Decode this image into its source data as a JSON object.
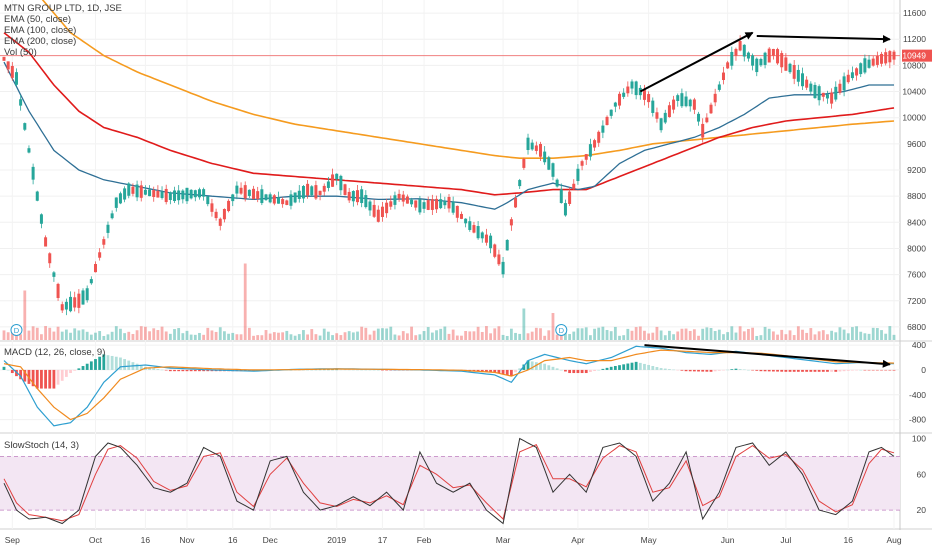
{
  "legend": {
    "title": "MTN GROUP LTD, 1D, JSE",
    "ema50": "EMA (50, close)",
    "ema100": "EMA (100, close)",
    "ema200": "EMA (200, close)",
    "vol": "Vol (50)"
  },
  "panes": {
    "macd_label": "MACD (12, 26, close, 9)",
    "stoch_label": "SlowStoch (14, 3)"
  },
  "price_tag": "10949",
  "colors": {
    "up": "#26a69a",
    "down": "#ef5350",
    "ema50": "#2e6f95",
    "ema100": "#e01b1b",
    "ema200": "#f59b1f",
    "macd": "#2e9fd0",
    "signal": "#f08a1e",
    "stoch_k": "#333333",
    "stoch_d": "#e04040",
    "stoch_band": "#f3e6f3",
    "price_line": "#f08080",
    "price_tag_bg": "#ef5350",
    "arrows": "#000000"
  },
  "chart_data": [
    {
      "type": "candlestick",
      "title": "MTN GROUP LTD, 1D, JSE",
      "y_ticks": [
        11600,
        11200,
        10800,
        10400,
        10000,
        9600,
        9200,
        8800,
        8400,
        8000,
        7600,
        7200,
        6800
      ],
      "ylim": [
        6600,
        11800
      ],
      "x_ticks": [
        "Sep",
        "Oct",
        "16",
        "Nov",
        "16",
        "Dec",
        "2019",
        "17",
        "Feb",
        "Mar",
        "Apr",
        "May",
        "Jun",
        "Jul",
        "16",
        "Aug"
      ],
      "last_price": 10949,
      "price_path": [
        [
          0,
          10900
        ],
        [
          3,
          10600
        ],
        [
          6,
          9500
        ],
        [
          10,
          8100
        ],
        [
          14,
          7100
        ],
        [
          18,
          7200
        ],
        [
          20,
          7300
        ],
        [
          24,
          8100
        ],
        [
          27,
          8700
        ],
        [
          30,
          8900
        ],
        [
          40,
          8800
        ],
        [
          48,
          8850
        ],
        [
          52,
          8400
        ],
        [
          56,
          8900
        ],
        [
          62,
          8800
        ],
        [
          68,
          8700
        ],
        [
          73,
          8900
        ],
        [
          76,
          8850
        ],
        [
          80,
          9100
        ],
        [
          83,
          8800
        ],
        [
          86,
          8800
        ],
        [
          90,
          8500
        ],
        [
          95,
          8800
        ],
        [
          100,
          8650
        ],
        [
          107,
          8700
        ],
        [
          112,
          8350
        ],
        [
          117,
          8100
        ],
        [
          120,
          7700
        ],
        [
          122,
          8400
        ],
        [
          126,
          9600
        ],
        [
          129,
          9500
        ],
        [
          132,
          9200
        ],
        [
          135,
          8600
        ],
        [
          139,
          9300
        ],
        [
          143,
          9700
        ],
        [
          147,
          10200
        ],
        [
          151,
          10500
        ],
        [
          155,
          10300
        ],
        [
          158,
          9900
        ],
        [
          162,
          10300
        ],
        [
          166,
          10200
        ],
        [
          168,
          9800
        ],
        [
          171,
          10300
        ],
        [
          174,
          10800
        ],
        [
          177,
          11100
        ],
        [
          181,
          10800
        ],
        [
          185,
          11000
        ],
        [
          190,
          10700
        ],
        [
          195,
          10400
        ],
        [
          199,
          10300
        ],
        [
          203,
          10600
        ],
        [
          207,
          10800
        ],
        [
          211,
          10900
        ],
        [
          214,
          10949
        ]
      ],
      "ema50": [
        [
          0,
          10850
        ],
        [
          6,
          10100
        ],
        [
          12,
          9500
        ],
        [
          18,
          9200
        ],
        [
          24,
          9050
        ],
        [
          32,
          8950
        ],
        [
          40,
          8850
        ],
        [
          50,
          8800
        ],
        [
          60,
          8750
        ],
        [
          70,
          8800
        ],
        [
          80,
          8800
        ],
        [
          90,
          8750
        ],
        [
          100,
          8760
        ],
        [
          110,
          8700
        ],
        [
          118,
          8600
        ],
        [
          121,
          8700
        ],
        [
          126,
          8900
        ],
        [
          132,
          9000
        ],
        [
          138,
          8900
        ],
        [
          142,
          8950
        ],
        [
          148,
          9300
        ],
        [
          154,
          9500
        ],
        [
          160,
          9600
        ],
        [
          166,
          9700
        ],
        [
          172,
          9850
        ],
        [
          178,
          10050
        ],
        [
          184,
          10300
        ],
        [
          190,
          10350
        ],
        [
          196,
          10350
        ],
        [
          202,
          10400
        ],
        [
          208,
          10500
        ],
        [
          214,
          10500
        ]
      ],
      "ema100": [
        [
          0,
          11300
        ],
        [
          6,
          11000
        ],
        [
          12,
          10500
        ],
        [
          18,
          10100
        ],
        [
          24,
          9850
        ],
        [
          32,
          9700
        ],
        [
          40,
          9500
        ],
        [
          50,
          9300
        ],
        [
          60,
          9150
        ],
        [
          70,
          9100
        ],
        [
          80,
          9050
        ],
        [
          90,
          9000
        ],
        [
          100,
          8950
        ],
        [
          110,
          8900
        ],
        [
          118,
          8820
        ],
        [
          124,
          8850
        ],
        [
          132,
          8900
        ],
        [
          140,
          8900
        ],
        [
          148,
          9100
        ],
        [
          156,
          9300
        ],
        [
          164,
          9500
        ],
        [
          172,
          9700
        ],
        [
          180,
          9850
        ],
        [
          188,
          9950
        ],
        [
          196,
          10000
        ],
        [
          204,
          10050
        ],
        [
          214,
          10150
        ]
      ],
      "ema200": [
        [
          0,
          12500
        ],
        [
          8,
          11900
        ],
        [
          16,
          11300
        ],
        [
          24,
          10950
        ],
        [
          32,
          10700
        ],
        [
          40,
          10500
        ],
        [
          50,
          10250
        ],
        [
          60,
          10050
        ],
        [
          70,
          9900
        ],
        [
          80,
          9800
        ],
        [
          90,
          9700
        ],
        [
          100,
          9600
        ],
        [
          110,
          9500
        ],
        [
          118,
          9420
        ],
        [
          124,
          9380
        ],
        [
          132,
          9380
        ],
        [
          140,
          9420
        ],
        [
          148,
          9500
        ],
        [
          156,
          9600
        ],
        [
          164,
          9650
        ],
        [
          172,
          9700
        ],
        [
          180,
          9750
        ],
        [
          188,
          9800
        ],
        [
          196,
          9850
        ],
        [
          204,
          9900
        ],
        [
          214,
          9950
        ]
      ],
      "volume_spikes": [
        [
          5,
          0.55
        ],
        [
          58,
          0.85
        ],
        [
          125,
          0.35
        ],
        [
          132,
          0.3
        ]
      ]
    },
    {
      "type": "line",
      "title": "MACD (12, 26, close, 9)",
      "y_ticks": [
        400,
        0,
        -400,
        -800
      ],
      "ylim": [
        -1000,
        450
      ],
      "macd": [
        [
          0,
          150
        ],
        [
          4,
          -100
        ],
        [
          8,
          -600
        ],
        [
          12,
          -900
        ],
        [
          16,
          -850
        ],
        [
          20,
          -600
        ],
        [
          24,
          -200
        ],
        [
          28,
          50
        ],
        [
          34,
          80
        ],
        [
          40,
          30
        ],
        [
          50,
          0
        ],
        [
          60,
          -20
        ],
        [
          70,
          10
        ],
        [
          80,
          20
        ],
        [
          90,
          10
        ],
        [
          100,
          0
        ],
        [
          110,
          -20
        ],
        [
          118,
          -80
        ],
        [
          122,
          -200
        ],
        [
          126,
          150
        ],
        [
          130,
          250
        ],
        [
          136,
          150
        ],
        [
          140,
          100
        ],
        [
          146,
          200
        ],
        [
          152,
          380
        ],
        [
          158,
          350
        ],
        [
          164,
          280
        ],
        [
          170,
          250
        ],
        [
          176,
          300
        ],
        [
          182,
          250
        ],
        [
          188,
          200
        ],
        [
          194,
          150
        ],
        [
          200,
          100
        ],
        [
          206,
          120
        ],
        [
          214,
          100
        ]
      ],
      "signal": [
        [
          0,
          100
        ],
        [
          4,
          50
        ],
        [
          8,
          -300
        ],
        [
          12,
          -600
        ],
        [
          16,
          -800
        ],
        [
          20,
          -700
        ],
        [
          24,
          -450
        ],
        [
          28,
          -150
        ],
        [
          34,
          30
        ],
        [
          40,
          50
        ],
        [
          50,
          20
        ],
        [
          60,
          0
        ],
        [
          70,
          5
        ],
        [
          80,
          15
        ],
        [
          90,
          10
        ],
        [
          100,
          5
        ],
        [
          110,
          -5
        ],
        [
          118,
          -40
        ],
        [
          122,
          -100
        ],
        [
          126,
          0
        ],
        [
          130,
          150
        ],
        [
          136,
          200
        ],
        [
          140,
          150
        ],
        [
          146,
          150
        ],
        [
          152,
          250
        ],
        [
          158,
          320
        ],
        [
          164,
          300
        ],
        [
          170,
          280
        ],
        [
          176,
          280
        ],
        [
          182,
          270
        ],
        [
          188,
          230
        ],
        [
          194,
          180
        ],
        [
          200,
          130
        ],
        [
          206,
          120
        ],
        [
          214,
          110
        ]
      ]
    },
    {
      "type": "line",
      "title": "SlowStoch (14, 3)",
      "y_ticks": [
        100,
        60,
        20
      ],
      "ylim": [
        0,
        105
      ],
      "band": [
        20,
        80
      ],
      "k": [
        [
          0,
          50
        ],
        [
          3,
          20
        ],
        [
          6,
          10
        ],
        [
          10,
          12
        ],
        [
          14,
          5
        ],
        [
          18,
          20
        ],
        [
          22,
          80
        ],
        [
          25,
          95
        ],
        [
          28,
          90
        ],
        [
          32,
          70
        ],
        [
          36,
          45
        ],
        [
          40,
          40
        ],
        [
          44,
          50
        ],
        [
          48,
          90
        ],
        [
          52,
          80
        ],
        [
          56,
          30
        ],
        [
          60,
          20
        ],
        [
          64,
          75
        ],
        [
          68,
          80
        ],
        [
          72,
          40
        ],
        [
          76,
          20
        ],
        [
          80,
          25
        ],
        [
          84,
          35
        ],
        [
          88,
          25
        ],
        [
          92,
          40
        ],
        [
          96,
          20
        ],
        [
          100,
          85
        ],
        [
          104,
          50
        ],
        [
          108,
          40
        ],
        [
          112,
          50
        ],
        [
          116,
          20
        ],
        [
          120,
          5
        ],
        [
          124,
          100
        ],
        [
          128,
          90
        ],
        [
          132,
          40
        ],
        [
          136,
          60
        ],
        [
          140,
          40
        ],
        [
          144,
          90
        ],
        [
          148,
          95
        ],
        [
          152,
          80
        ],
        [
          156,
          30
        ],
        [
          160,
          50
        ],
        [
          164,
          85
        ],
        [
          168,
          10
        ],
        [
          172,
          40
        ],
        [
          176,
          90
        ],
        [
          180,
          95
        ],
        [
          184,
          70
        ],
        [
          188,
          85
        ],
        [
          192,
          60
        ],
        [
          196,
          20
        ],
        [
          200,
          15
        ],
        [
          204,
          30
        ],
        [
          208,
          85
        ],
        [
          211,
          90
        ],
        [
          214,
          80
        ]
      ],
      "d": [
        [
          0,
          55
        ],
        [
          3,
          28
        ],
        [
          6,
          15
        ],
        [
          10,
          12
        ],
        [
          14,
          8
        ],
        [
          18,
          15
        ],
        [
          22,
          60
        ],
        [
          25,
          88
        ],
        [
          28,
          92
        ],
        [
          32,
          78
        ],
        [
          36,
          52
        ],
        [
          40,
          42
        ],
        [
          44,
          47
        ],
        [
          48,
          80
        ],
        [
          52,
          84
        ],
        [
          56,
          40
        ],
        [
          60,
          24
        ],
        [
          64,
          60
        ],
        [
          68,
          78
        ],
        [
          72,
          50
        ],
        [
          76,
          28
        ],
        [
          80,
          24
        ],
        [
          84,
          32
        ],
        [
          88,
          28
        ],
        [
          92,
          36
        ],
        [
          96,
          26
        ],
        [
          100,
          70
        ],
        [
          104,
          60
        ],
        [
          108,
          45
        ],
        [
          112,
          48
        ],
        [
          116,
          28
        ],
        [
          120,
          10
        ],
        [
          124,
          85
        ],
        [
          128,
          93
        ],
        [
          132,
          55
        ],
        [
          136,
          55
        ],
        [
          140,
          46
        ],
        [
          144,
          78
        ],
        [
          148,
          92
        ],
        [
          152,
          85
        ],
        [
          156,
          40
        ],
        [
          160,
          45
        ],
        [
          164,
          75
        ],
        [
          168,
          25
        ],
        [
          172,
          35
        ],
        [
          176,
          80
        ],
        [
          180,
          92
        ],
        [
          184,
          78
        ],
        [
          188,
          82
        ],
        [
          192,
          65
        ],
        [
          196,
          30
        ],
        [
          200,
          18
        ],
        [
          204,
          26
        ],
        [
          208,
          72
        ],
        [
          211,
          88
        ],
        [
          214,
          84
        ]
      ]
    }
  ]
}
